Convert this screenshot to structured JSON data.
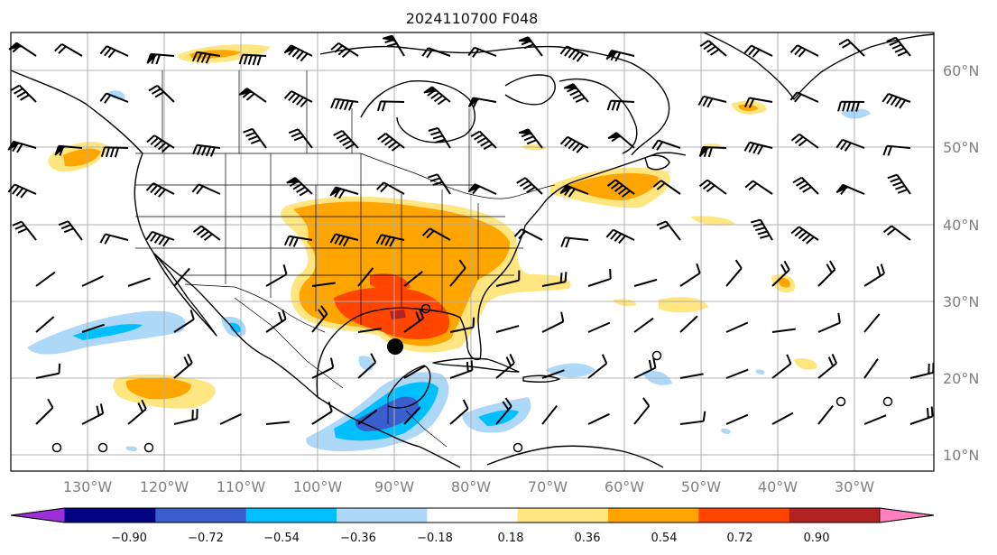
{
  "title": "2024110700 F048",
  "lon_labels": [
    "130°W",
    "120°W",
    "110°W",
    "100°W",
    "90°W",
    "80°W",
    "70°W",
    "60°W",
    "50°W",
    "40°W",
    "30°W"
  ],
  "lat_labels": [
    "60°N",
    "50°N",
    "40°N",
    "30°N",
    "20°N",
    "10°N"
  ],
  "colorbar": {
    "ticks": [
      "−0.90",
      "−0.72",
      "−0.54",
      "−0.36",
      "−0.18",
      "0.18",
      "0.36",
      "0.54",
      "0.72",
      "0.90"
    ],
    "colors": [
      "#9b30d9",
      "#000080",
      "#3a5fcd",
      "#00bfff",
      "#add8f7",
      "#ffffff",
      "#ffe680",
      "#ffa500",
      "#ff4500",
      "#b22222",
      "#ff7fbf"
    ]
  },
  "colors": {
    "light_yellow": "#ffe680",
    "orange": "#ffa500",
    "red_orange": "#ff4500",
    "dark_red": "#b22222",
    "light_blue": "#add8f7",
    "sky_blue": "#00bfff",
    "royal_blue": "#3a5fcd"
  }
}
